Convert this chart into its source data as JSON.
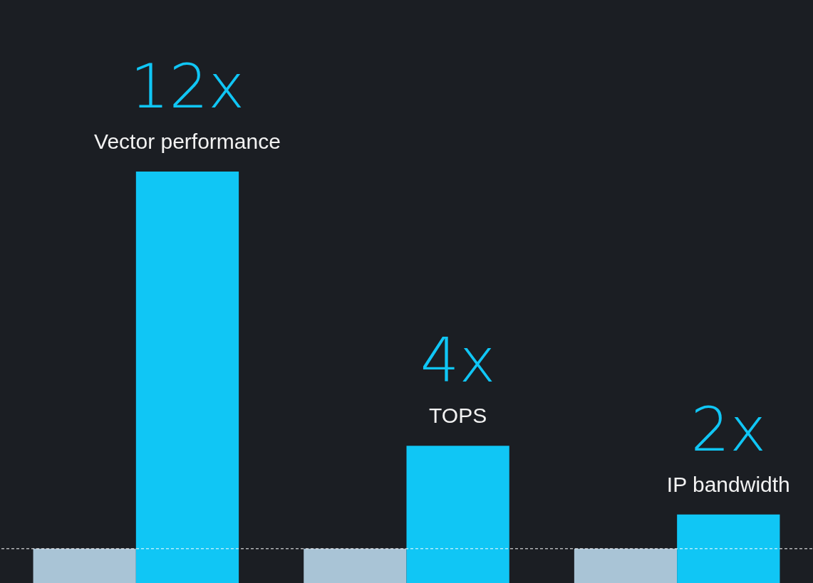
{
  "chart_data": {
    "type": "bar",
    "categories": [
      "Vector performance",
      "TOPS",
      "IP bandwidth"
    ],
    "series": [
      {
        "color": "#a9c4d6",
        "values": [
          1,
          1,
          1
        ]
      },
      {
        "color": "#10c6f5",
        "values": [
          12,
          4,
          2
        ],
        "value_labels": [
          "12x",
          "4x",
          "2x"
        ]
      }
    ],
    "ylim": [
      0,
      17
    ],
    "tick_labels": false,
    "grid": false,
    "legend": false,
    "ref_lines": [
      {
        "axis": "y",
        "value": 1,
        "color": "#ffffff",
        "line_style": "dashed"
      }
    ]
  }
}
